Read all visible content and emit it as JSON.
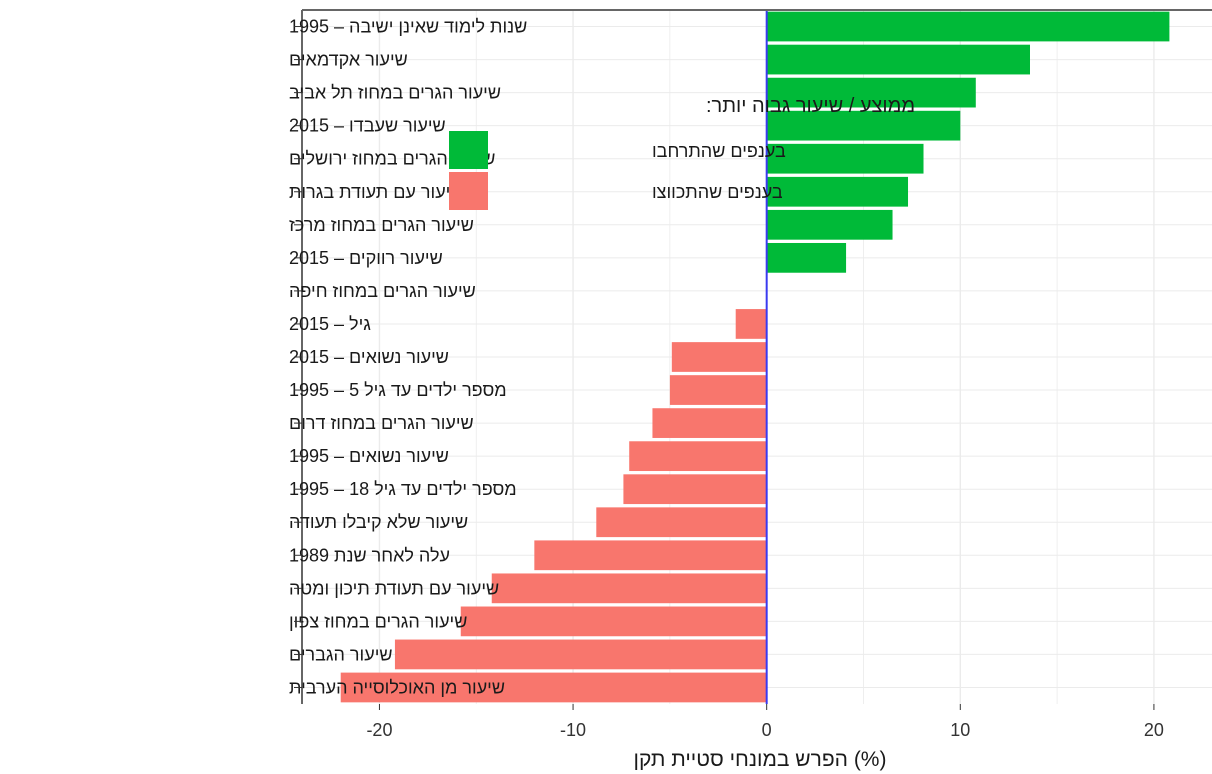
{
  "chart_data": {
    "type": "bar",
    "orientation": "horizontal",
    "xlabel": "הפרש במונחי סטיית תקן (%)",
    "ylabel": "",
    "xlim": [
      -24,
      23
    ],
    "xticks": [
      -20,
      -10,
      0,
      10,
      20
    ],
    "grid": true,
    "legend": {
      "title": "ממוצע / שיעור גבוה יותר:",
      "placement": "top-center",
      "entries": [
        {
          "label": "בענפים שהתרחבו",
          "color": "#00ba38"
        },
        {
          "label": "בענפים שהתכווצו",
          "color": "#f8766d"
        }
      ]
    },
    "categories": [
      "שנות לימוד  שאינן ישיבה – 1995",
      "שיעור אקדמאים",
      "שיעור הגרים במחוז תל אביב",
      "שיעור שעבדו – 2015",
      "שיעור הגרים במחוז ירושלים",
      "שיעור עם תעודת בגרות",
      "שיעור הגרים במחוז מרכז",
      "שיעור רווקים – 2015",
      "שיעור הגרים במחוז חיפה",
      "גיל – 2015",
      "שיעור נשואים – 2015",
      "מספר ילדים עד גיל 5 – 1995",
      "שיעור הגרים במחוז דרום",
      "שיעור נשואים – 1995",
      "מספר ילדים עד גיל 18 – 1995",
      "שיעור שלא קיבלו תעודה",
      "עלה לאחר שנת 1989",
      "שיעור עם תעודת תיכון ומטה",
      "שיעור הגרים במחוז צפון",
      "שיעור הגברים",
      "שיעור מן האוכלוסייה הערבית"
    ],
    "values": [
      20.8,
      13.6,
      10.8,
      10.0,
      8.1,
      7.3,
      6.5,
      4.1,
      0.0,
      -1.6,
      -4.9,
      -5.0,
      -5.9,
      -7.1,
      -7.4,
      -8.8,
      -12.0,
      -14.2,
      -15.8,
      -19.2,
      -22.0
    ],
    "colors": {
      "positive": "#00ba38",
      "negative": "#f8766d",
      "zero_line": "#3a3af0",
      "grid": "#ebebeb",
      "panel_border": "#666666"
    }
  }
}
